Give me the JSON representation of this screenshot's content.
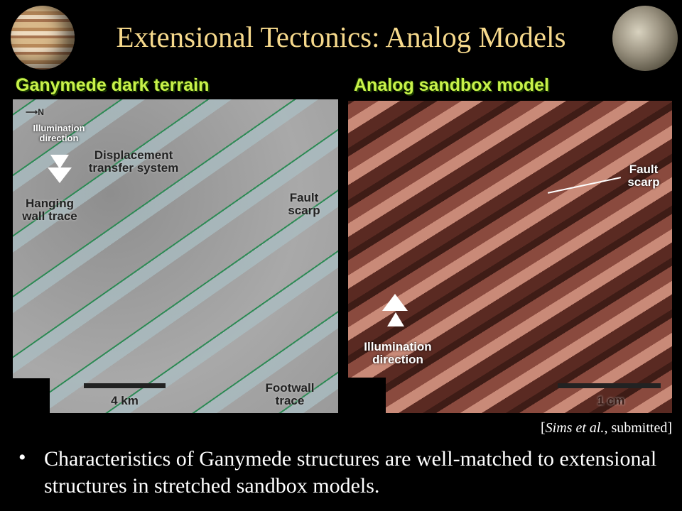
{
  "title": "Extensional Tectonics: Analog Models",
  "left_panel": {
    "heading": "Ganymede dark terrain",
    "north_label": "N",
    "labels": {
      "illumination": "Illumination direction",
      "displacement": "Displacement transfer system",
      "hanging_wall": "Hanging wall trace",
      "fault_scarp": "Fault scarp",
      "footwall": "Footwall trace",
      "scale": "4 km"
    }
  },
  "right_panel": {
    "heading": "Analog sandbox model",
    "labels": {
      "fault_scarp": "Fault scarp",
      "illumination": "Illumination direction",
      "scale": "1 cm"
    }
  },
  "citation": {
    "authors": "Sims et al.",
    "rest": ", submitted",
    "open": "[",
    "close": "]"
  },
  "bullet": {
    "marker": "•",
    "text": "Characteristics of Ganymede structures are well-matched to extensional structures in stretched sandbox models."
  },
  "colors": {
    "title": "#f6d98c",
    "heading": "#c9f24a",
    "background": "#000000"
  }
}
